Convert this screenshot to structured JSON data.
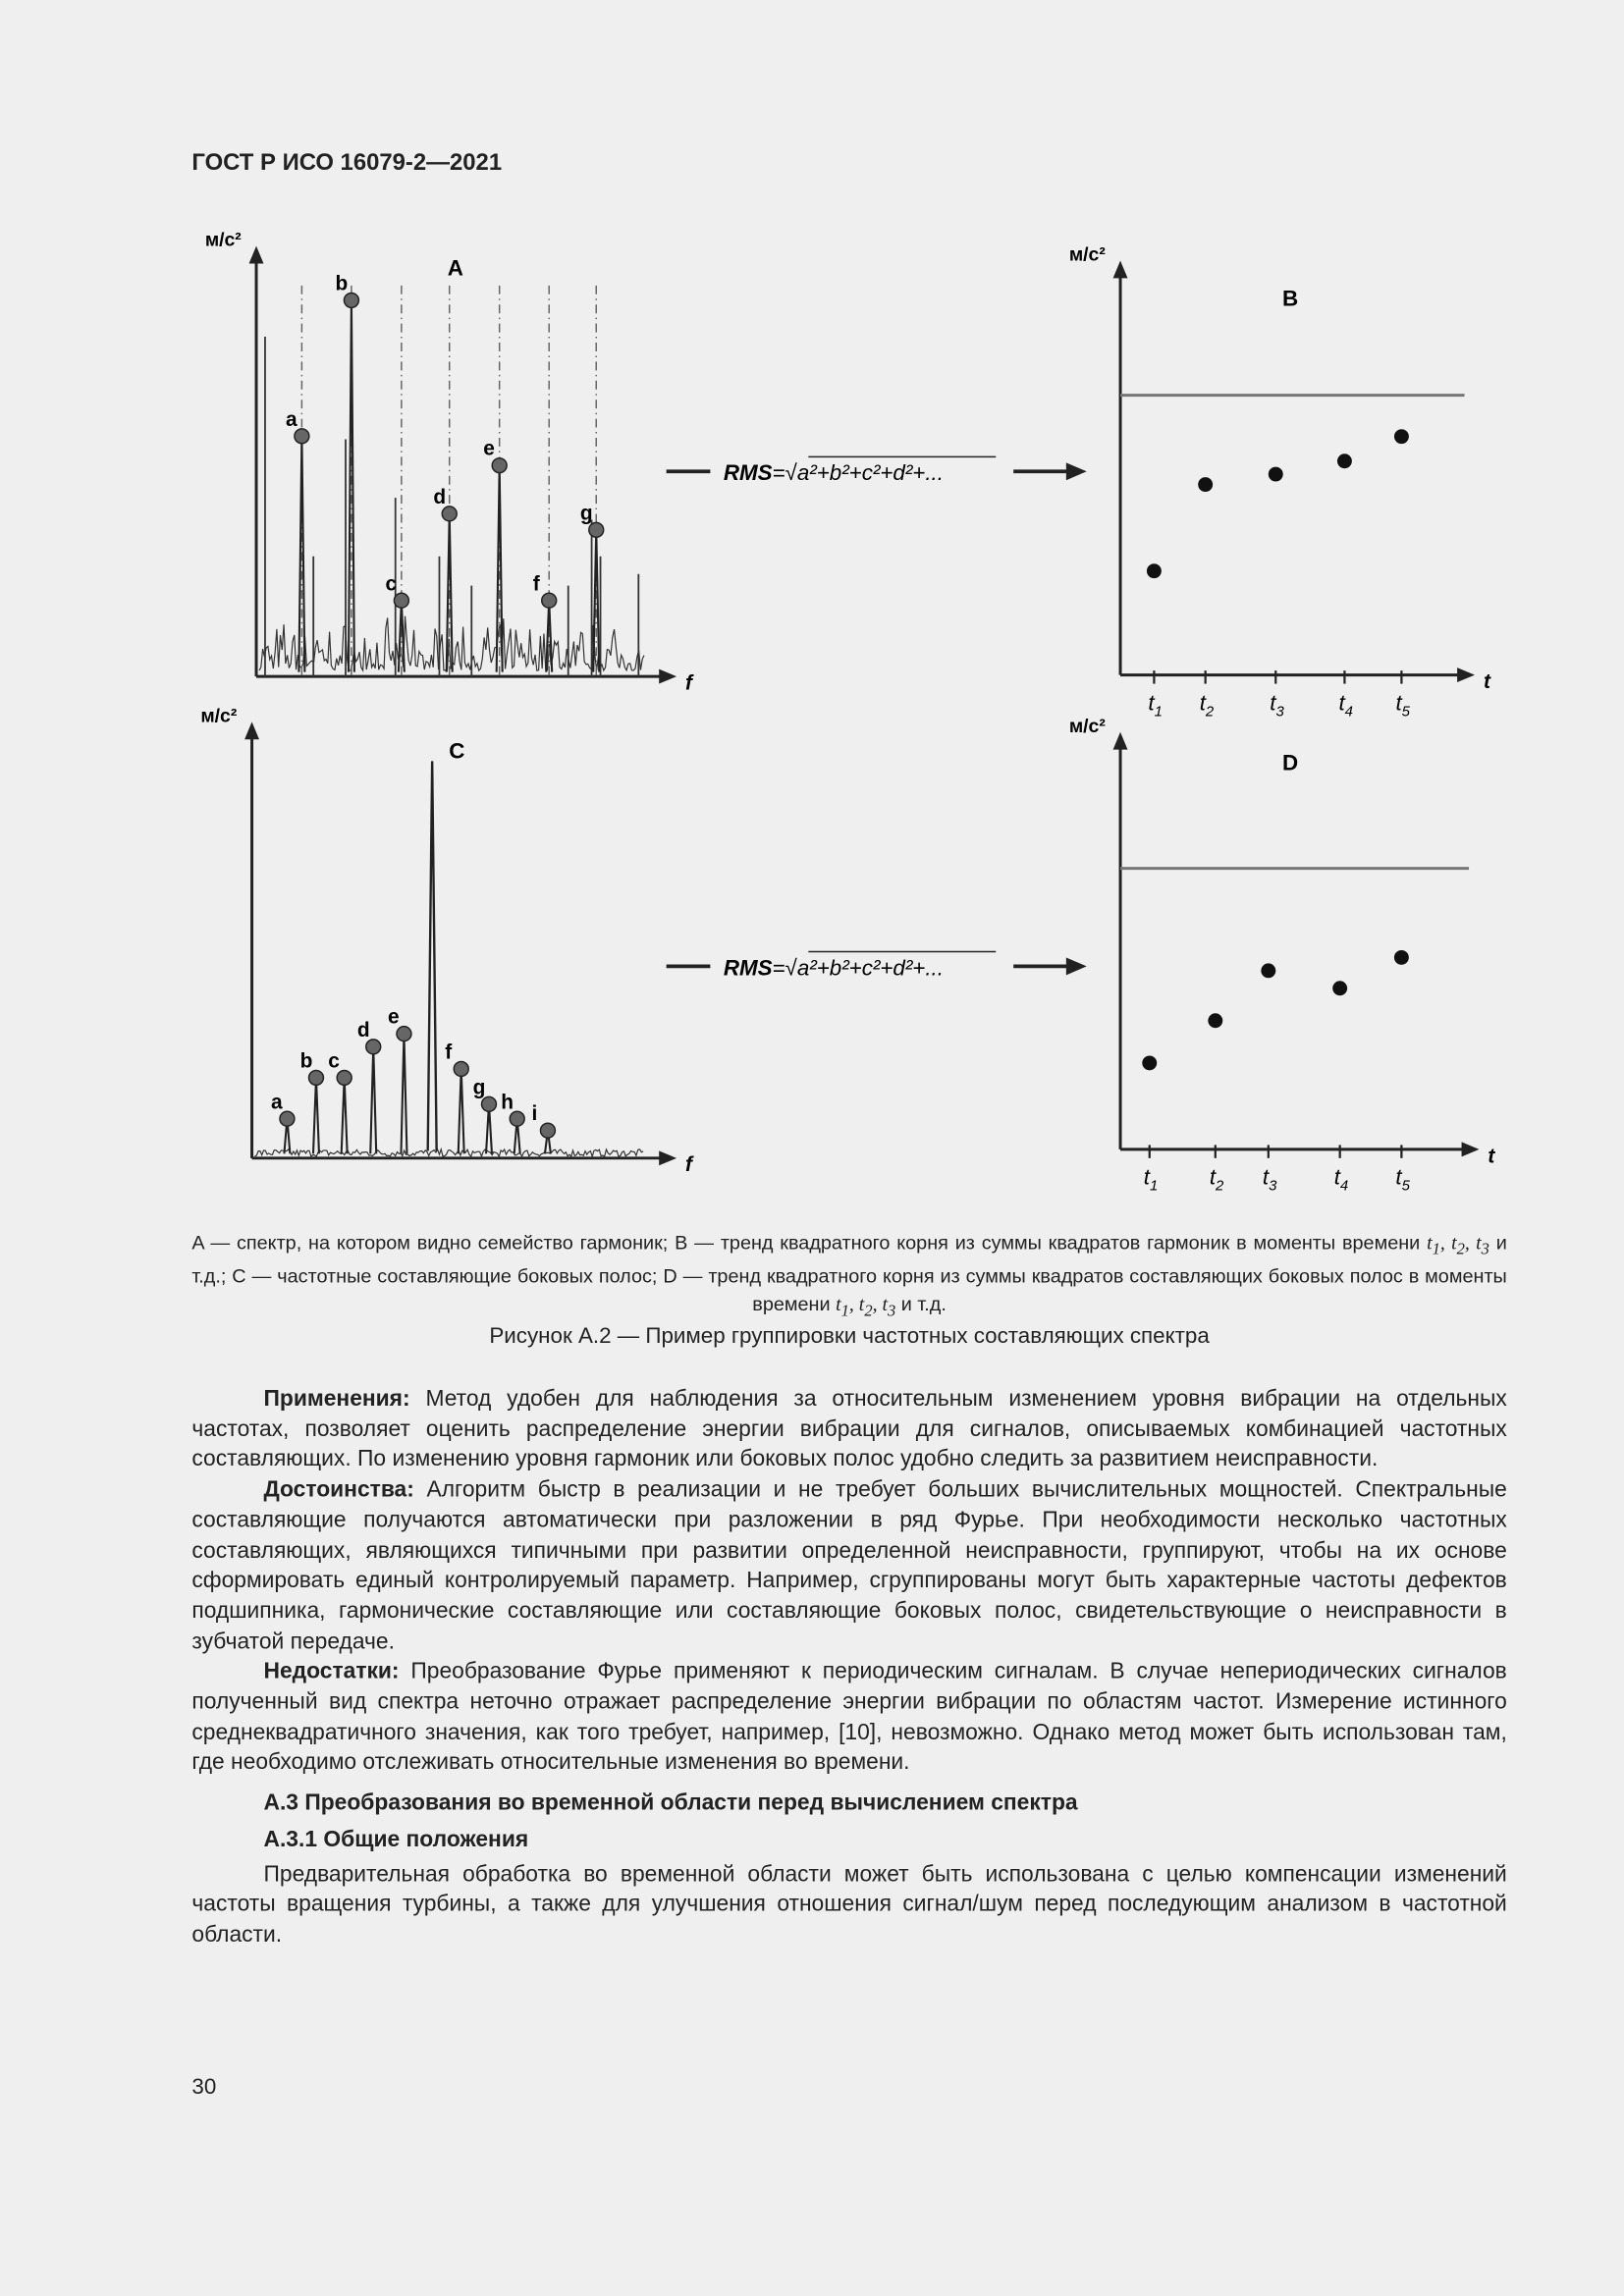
{
  "header": "ГОСТ Р ИСО 16079-2—2021",
  "colors": {
    "text": "#222222",
    "threshold": "#777777",
    "marker": "#666666",
    "background": "#efefef"
  },
  "formula": {
    "lhs": "RMS",
    "rhs": "=√a²+b²+c²+d²+..."
  },
  "chart_data": [
    {
      "id": "A",
      "type": "line",
      "title": "A",
      "ylabel": "м/с²",
      "xlabel": "f",
      "xlim": [
        0,
        100
      ],
      "ylim": [
        0,
        100
      ],
      "labeled_peaks": [
        {
          "label": "a",
          "x": 11.1,
          "y": 58.2
        },
        {
          "label": "b",
          "x": 23.2,
          "y": 91.1
        },
        {
          "label": "c",
          "x": 35.4,
          "y": 18.4
        },
        {
          "label": "d",
          "x": 47.1,
          "y": 39.4
        },
        {
          "label": "e",
          "x": 59.3,
          "y": 51.1
        },
        {
          "label": "f",
          "x": 71.4,
          "y": 18.4
        },
        {
          "label": "g",
          "x": 82.9,
          "y": 35.5
        }
      ]
    },
    {
      "id": "B",
      "type": "scatter",
      "title": "B",
      "ylabel": "м/с²",
      "xlabel": "t",
      "xlim": [
        0,
        100
      ],
      "ylim": [
        0,
        100
      ],
      "threshold": 70.5,
      "ticks": [
        "t1",
        "t2",
        "t3",
        "t4",
        "t5"
      ],
      "x": [
        9.6,
        24.2,
        44.2,
        63.8,
        80
      ],
      "y": [
        26.2,
        48.0,
        50.6,
        53.9,
        60.1
      ]
    },
    {
      "id": "C",
      "type": "line",
      "title": "C",
      "ylabel": "м/с²",
      "xlabel": "f",
      "xlim": [
        0,
        100
      ],
      "ylim": [
        0,
        100
      ],
      "main_peak": {
        "x": 43.5,
        "y": 94.8
      },
      "labeled_peaks": [
        {
          "label": "a",
          "x": 8.5,
          "y": 9.4
        },
        {
          "label": "b",
          "x": 15.5,
          "y": 19.2
        },
        {
          "label": "c",
          "x": 22.3,
          "y": 19.2
        },
        {
          "label": "d",
          "x": 29.3,
          "y": 26.6
        },
        {
          "label": "e",
          "x": 36.7,
          "y": 29.7
        },
        {
          "label": "f",
          "x": 50.5,
          "y": 21.3
        },
        {
          "label": "g",
          "x": 57.2,
          "y": 12.9
        },
        {
          "label": "h",
          "x": 64.0,
          "y": 9.4
        },
        {
          "label": "i",
          "x": 71.4,
          "y": 6.6
        }
      ]
    },
    {
      "id": "D",
      "type": "scatter",
      "title": "D",
      "ylabel": "м/с²",
      "xlabel": "t",
      "xlim": [
        0,
        100
      ],
      "ylim": [
        0,
        100
      ],
      "threshold": 70.3,
      "ticks": [
        "t1",
        "t2",
        "t3",
        "t4",
        "t5"
      ],
      "x": [
        8.2,
        26.7,
        41.6,
        61.7,
        79
      ],
      "y": [
        21.6,
        32.2,
        44.7,
        40.3,
        48.0
      ]
    }
  ],
  "caption": {
    "p1": "A — спектр, на котором видно семейство гармоник; B — тренд квадратного корня из суммы квадратов гармоник в моменты времени ",
    "p2": " и т.д.; C — частотные составляющие боковых полос; D — тренд квадратного корня из суммы квадратов составляющих боковых полос в моменты времени ",
    "p3": " и т.д.",
    "times": "t1, t2, t3"
  },
  "figure_title": "Рисунок А.2 — Пример группировки частотных составляющих спектра",
  "body": {
    "p1_label": "Применения:",
    "p1": " Метод удобен для наблюдения за относительным изменением уровня вибрации на отдельных частотах, позволяет оценить распределение энергии вибрации для сигналов, описываемых комбинацией частотных составляющих. По изменению уровня гармоник или боковых полос удобно следить за развитием неисправности.",
    "p2_label": "Достоинства:",
    "p2": " Алгоритм быстр в реализации и не требует больших вычислительных мощностей. Спектральные составляющие получаются автоматически при разложении в ряд Фурье. При необходимости несколько частотных составляющих, являющихся типичными при развитии определенной неисправности, группируют, чтобы на их основе сформировать единый контролируемый параметр. Например, сгруппированы могут быть характерные частоты дефектов подшипника, гармонические составляющие или составляющие боковых полос, свидетельствующие о неисправности в зубчатой передаче.",
    "p3_label": "Недостатки:",
    "p3": " Преобразование Фурье применяют к периодическим сигналам. В случае непериодических сигналов полученный вид спектра неточно отражает распределение энергии вибрации по областям частот. Измерение истинного среднеквадратичного значения, как того требует, например, [10], невозможно. Однако метод может быть использован там, где необходимо отслеживать относительные изменения во времени.",
    "h1": "А.3 Преобразования во временной области перед вычислением спектра",
    "h2": "А.3.1 Общие положения",
    "p4": "Предварительная обработка во временной области может быть использована с целью компенсации изменений частоты вращения турбины, а также для улучшения отношения сигнал/шум перед последующим анализом в частотной области."
  },
  "page_number": "30"
}
